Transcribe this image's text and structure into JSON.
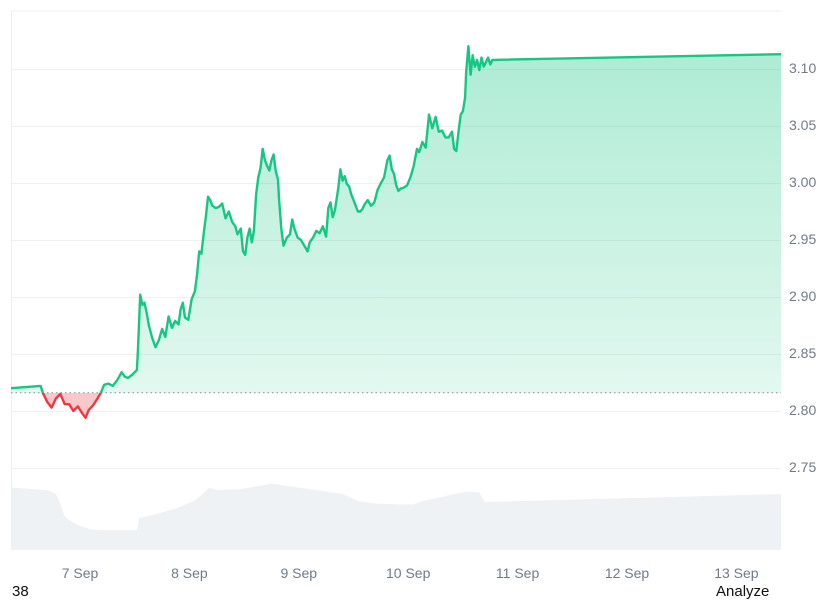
{
  "chart_data": {
    "type": "area",
    "title": "",
    "xlabel": "",
    "ylabel": "",
    "ylim": [
      2.7,
      3.135
    ],
    "grid": true,
    "legend": "none",
    "x_ticks": [
      "7 Sep",
      "8 Sep",
      "9 Sep",
      "10 Sep",
      "11 Sep",
      "12 Sep",
      "13 Sep"
    ],
    "y_ticks": [
      "3.10",
      "3.05",
      "3.00",
      "2.95",
      "2.90",
      "2.85",
      "2.80",
      "2.75"
    ],
    "baseline": 2.816,
    "colors": {
      "up": "#16c784",
      "down": "#ea3943",
      "volume": "#eff2f5",
      "grid": "#eef0f3",
      "axis_text": "#717a86"
    },
    "series": [
      {
        "name": "Price",
        "points": [
          [
            6.62,
            2.82
          ],
          [
            6.64,
            2.822
          ],
          [
            6.66,
            2.816
          ],
          [
            6.7,
            2.808
          ],
          [
            6.74,
            2.803
          ],
          [
            6.78,
            2.811
          ],
          [
            6.82,
            2.815
          ],
          [
            6.86,
            2.806
          ],
          [
            6.9,
            2.806
          ],
          [
            6.94,
            2.8
          ],
          [
            6.98,
            2.804
          ],
          [
            7.02,
            2.798
          ],
          [
            7.05,
            2.794
          ],
          [
            7.08,
            2.801
          ],
          [
            7.12,
            2.805
          ],
          [
            7.16,
            2.811
          ],
          [
            7.19,
            2.816
          ],
          [
            7.22,
            2.823
          ],
          [
            7.26,
            2.824
          ],
          [
            7.3,
            2.822
          ],
          [
            7.34,
            2.827
          ],
          [
            7.38,
            2.834
          ],
          [
            7.41,
            2.83
          ],
          [
            7.44,
            2.829
          ],
          [
            7.48,
            2.832
          ],
          [
            7.52,
            2.836
          ],
          [
            7.53,
            2.855
          ],
          [
            7.55,
            2.902
          ],
          [
            7.57,
            2.893
          ],
          [
            7.59,
            2.895
          ],
          [
            7.61,
            2.886
          ],
          [
            7.63,
            2.875
          ],
          [
            7.66,
            2.864
          ],
          [
            7.69,
            2.856
          ],
          [
            7.72,
            2.862
          ],
          [
            7.75,
            2.872
          ],
          [
            7.78,
            2.865
          ],
          [
            7.81,
            2.883
          ],
          [
            7.84,
            2.873
          ],
          [
            7.87,
            2.879
          ],
          [
            7.9,
            2.876
          ],
          [
            7.92,
            2.889
          ],
          [
            7.94,
            2.895
          ],
          [
            7.96,
            2.882
          ],
          [
            7.99,
            2.88
          ],
          [
            8.02,
            2.898
          ],
          [
            8.05,
            2.905
          ],
          [
            8.07,
            2.92
          ],
          [
            8.09,
            2.94
          ],
          [
            8.11,
            2.938
          ],
          [
            8.13,
            2.955
          ],
          [
            8.15,
            2.97
          ],
          [
            8.17,
            2.988
          ],
          [
            8.19,
            2.985
          ],
          [
            8.21,
            2.98
          ],
          [
            8.24,
            2.978
          ],
          [
            8.27,
            2.979
          ],
          [
            8.3,
            2.982
          ],
          [
            8.33,
            2.969
          ],
          [
            8.36,
            2.975
          ],
          [
            8.39,
            2.966
          ],
          [
            8.42,
            2.962
          ],
          [
            8.44,
            2.955
          ],
          [
            8.47,
            2.96
          ],
          [
            8.49,
            2.94
          ],
          [
            8.51,
            2.937
          ],
          [
            8.53,
            2.952
          ],
          [
            8.55,
            2.96
          ],
          [
            8.57,
            2.948
          ],
          [
            8.59,
            2.958
          ],
          [
            8.61,
            2.99
          ],
          [
            8.63,
            3.005
          ],
          [
            8.65,
            3.013
          ],
          [
            8.67,
            3.03
          ],
          [
            8.69,
            3.02
          ],
          [
            8.71,
            3.015
          ],
          [
            8.73,
            3.011
          ],
          [
            8.75,
            3.02
          ],
          [
            8.77,
            3.025
          ],
          [
            8.79,
            3.01
          ],
          [
            8.81,
            3.003
          ],
          [
            8.82,
            2.985
          ],
          [
            8.84,
            2.96
          ],
          [
            8.86,
            2.945
          ],
          [
            8.89,
            2.952
          ],
          [
            8.92,
            2.955
          ],
          [
            8.94,
            2.968
          ],
          [
            8.96,
            2.96
          ],
          [
            8.99,
            2.952
          ],
          [
            9.02,
            2.95
          ],
          [
            9.05,
            2.945
          ],
          [
            9.08,
            2.94
          ],
          [
            9.1,
            2.948
          ],
          [
            9.13,
            2.952
          ],
          [
            9.16,
            2.958
          ],
          [
            9.19,
            2.956
          ],
          [
            9.22,
            2.962
          ],
          [
            9.25,
            2.953
          ],
          [
            9.27,
            2.978
          ],
          [
            9.29,
            2.983
          ],
          [
            9.31,
            2.97
          ],
          [
            9.33,
            2.976
          ],
          [
            9.36,
            2.995
          ],
          [
            9.38,
            3.012
          ],
          [
            9.4,
            3.002
          ],
          [
            9.42,
            3.006
          ],
          [
            9.44,
            2.999
          ],
          [
            9.46,
            2.997
          ],
          [
            9.48,
            2.99
          ],
          [
            9.5,
            2.985
          ],
          [
            9.52,
            2.98
          ],
          [
            9.54,
            2.975
          ],
          [
            9.56,
            2.975
          ],
          [
            9.58,
            2.977
          ],
          [
            9.6,
            2.981
          ],
          [
            9.63,
            2.985
          ],
          [
            9.66,
            2.98
          ],
          [
            9.69,
            2.983
          ],
          [
            9.72,
            2.994
          ],
          [
            9.75,
            3.0
          ],
          [
            9.78,
            3.005
          ],
          [
            9.81,
            3.02
          ],
          [
            9.83,
            3.024
          ],
          [
            9.85,
            3.012
          ],
          [
            9.87,
            3.008
          ],
          [
            9.89,
            2.998
          ],
          [
            9.91,
            2.993
          ],
          [
            9.93,
            2.995
          ],
          [
            9.96,
            2.996
          ],
          [
            9.99,
            2.998
          ],
          [
            10.02,
            3.005
          ],
          [
            10.05,
            3.015
          ],
          [
            10.08,
            3.03
          ],
          [
            10.1,
            3.027
          ],
          [
            10.13,
            3.036
          ],
          [
            10.16,
            3.031
          ],
          [
            10.19,
            3.06
          ],
          [
            10.22,
            3.048
          ],
          [
            10.25,
            3.058
          ],
          [
            10.28,
            3.045
          ],
          [
            10.31,
            3.046
          ],
          [
            10.34,
            3.04
          ],
          [
            10.37,
            3.04
          ],
          [
            10.4,
            3.045
          ],
          [
            10.42,
            3.03
          ],
          [
            10.44,
            3.028
          ],
          [
            10.46,
            3.045
          ],
          [
            10.48,
            3.06
          ],
          [
            10.5,
            3.063
          ],
          [
            10.52,
            3.075
          ],
          [
            10.53,
            3.098
          ],
          [
            10.55,
            3.12
          ],
          [
            10.57,
            3.095
          ],
          [
            10.59,
            3.112
          ],
          [
            10.61,
            3.102
          ],
          [
            10.63,
            3.108
          ],
          [
            10.65,
            3.099
          ],
          [
            10.67,
            3.11
          ],
          [
            10.69,
            3.102
          ],
          [
            10.71,
            3.106
          ],
          [
            10.73,
            3.11
          ],
          [
            10.75,
            3.104
          ],
          [
            10.77,
            3.108
          ],
          [
            10.79,
            3.113
          ]
        ]
      },
      {
        "name": "Volume",
        "points": [
          [
            6.62,
            0.78
          ],
          [
            6.7,
            0.75
          ],
          [
            6.78,
            0.7
          ],
          [
            6.82,
            0.58
          ],
          [
            6.86,
            0.42
          ],
          [
            6.92,
            0.36
          ],
          [
            7.0,
            0.3
          ],
          [
            7.1,
            0.26
          ],
          [
            7.2,
            0.25
          ],
          [
            7.3,
            0.25
          ],
          [
            7.4,
            0.25
          ],
          [
            7.52,
            0.25
          ],
          [
            7.54,
            0.4
          ],
          [
            7.7,
            0.45
          ],
          [
            7.9,
            0.53
          ],
          [
            8.05,
            0.62
          ],
          [
            8.12,
            0.7
          ],
          [
            8.18,
            0.78
          ],
          [
            8.25,
            0.75
          ],
          [
            8.45,
            0.76
          ],
          [
            8.55,
            0.78
          ],
          [
            8.75,
            0.83
          ],
          [
            8.9,
            0.8
          ],
          [
            9.0,
            0.78
          ],
          [
            9.2,
            0.74
          ],
          [
            9.4,
            0.7
          ],
          [
            9.55,
            0.61
          ],
          [
            9.7,
            0.58
          ],
          [
            9.9,
            0.57
          ],
          [
            10.05,
            0.57
          ],
          [
            10.15,
            0.62
          ],
          [
            10.3,
            0.66
          ],
          [
            10.45,
            0.71
          ],
          [
            10.55,
            0.73
          ],
          [
            10.65,
            0.72
          ],
          [
            10.7,
            0.6
          ],
          [
            10.79,
            0.7
          ]
        ]
      }
    ]
  },
  "footer": {
    "left_text": "38",
    "right_text": "Analyze"
  }
}
